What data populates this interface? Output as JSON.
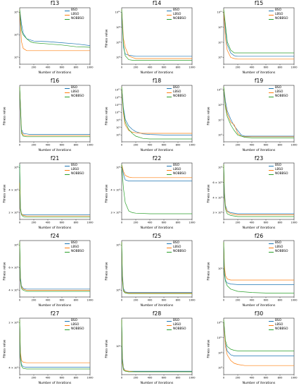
{
  "figure": {
    "xlabel": "Number of iterations",
    "ylabel": "Fitness value",
    "legend": [
      "BSO",
      "LBSO",
      "NOBBSO"
    ],
    "colors": {
      "BSO": "#1f77b4",
      "LBSO": "#ff7f0e",
      "NOBBSO": "#2ca02c"
    },
    "xticks": [
      "0",
      "200",
      "400",
      "600",
      "800",
      "1000"
    ]
  },
  "chart_data": [
    {
      "type": "line",
      "title": "f13",
      "xlabel": "Number of iterations",
      "ylabel": "",
      "y_scale": "log",
      "show_ylabel": false,
      "yticks": [
        "10¹",
        "10³",
        "10⁵"
      ],
      "xlim": [
        0,
        1000
      ],
      "x": [
        0,
        25,
        50,
        100,
        150,
        200,
        400,
        600,
        800,
        1000
      ],
      "series": [
        {
          "name": "BSO",
          "values": [
            0.97,
            0.72,
            0.55,
            0.45,
            0.43,
            0.41,
            0.4,
            0.38,
            0.36,
            0.33
          ]
        },
        {
          "name": "LBSO",
          "values": [
            0.97,
            0.4,
            0.28,
            0.24,
            0.24,
            0.24,
            0.24,
            0.24,
            0.24,
            0.24
          ]
        },
        {
          "name": "NOBBSO",
          "values": [
            0.97,
            0.6,
            0.52,
            0.45,
            0.4,
            0.38,
            0.36,
            0.34,
            0.31,
            0.3
          ]
        }
      ]
    },
    {
      "type": "line",
      "title": "f14",
      "xlabel": "Number of iterations",
      "ylabel": "Fitness value",
      "y_scale": "log",
      "show_ylabel": true,
      "yticks": [
        "10⁴",
        "10⁶",
        "10⁸",
        "10¹⁰"
      ],
      "xlim": [
        0,
        1000
      ],
      "x": [
        0,
        25,
        50,
        100,
        150,
        200,
        400,
        600,
        800,
        1000
      ],
      "series": [
        {
          "name": "BSO",
          "values": [
            0.97,
            0.3,
            0.18,
            0.16,
            0.15,
            0.14,
            0.14,
            0.14,
            0.14,
            0.14
          ]
        },
        {
          "name": "LBSO",
          "values": [
            0.97,
            0.45,
            0.3,
            0.15,
            0.12,
            0.1,
            0.1,
            0.1,
            0.1,
            0.1
          ]
        },
        {
          "name": "NOBBSO",
          "values": [
            0.97,
            0.35,
            0.15,
            0.08,
            0.07,
            0.07,
            0.07,
            0.07,
            0.07,
            0.07
          ]
        }
      ]
    },
    {
      "type": "line",
      "title": "f15",
      "xlabel": "Number of iterations",
      "ylabel": "",
      "y_scale": "log",
      "show_ylabel": false,
      "yticks": [
        "10⁵",
        "10⁷",
        "10⁹",
        "10¹¹"
      ],
      "xlim": [
        0,
        1000
      ],
      "x": [
        0,
        25,
        50,
        100,
        150,
        200,
        400,
        600,
        800,
        1000
      ],
      "series": [
        {
          "name": "BSO",
          "values": [
            0.97,
            0.6,
            0.35,
            0.2,
            0.15,
            0.14,
            0.14,
            0.14,
            0.14,
            0.14
          ]
        },
        {
          "name": "LBSO",
          "values": [
            0.97,
            0.45,
            0.25,
            0.12,
            0.1,
            0.09,
            0.09,
            0.09,
            0.09,
            0.09
          ]
        },
        {
          "name": "NOBBSO",
          "values": [
            0.97,
            0.7,
            0.4,
            0.25,
            0.2,
            0.2,
            0.2,
            0.2,
            0.2,
            0.2
          ]
        }
      ]
    },
    {
      "type": "line",
      "title": "f16",
      "xlabel": "Number of iterations",
      "ylabel": "Fitness value",
      "y_scale": "log",
      "show_ylabel": true,
      "yticks": [],
      "xlim": [
        0,
        1000
      ],
      "x": [
        0,
        25,
        50,
        100,
        150,
        200,
        400,
        600,
        800,
        1000
      ],
      "series": [
        {
          "name": "BSO",
          "values": [
            0.97,
            0.22,
            0.15,
            0.14,
            0.13,
            0.13,
            0.13,
            0.13,
            0.13,
            0.13
          ]
        },
        {
          "name": "LBSO",
          "values": [
            0.97,
            0.18,
            0.12,
            0.11,
            0.11,
            0.11,
            0.11,
            0.11,
            0.11,
            0.11
          ]
        },
        {
          "name": "NOBBSO",
          "values": [
            0.97,
            0.15,
            0.1,
            0.09,
            0.09,
            0.09,
            0.09,
            0.09,
            0.09,
            0.09
          ]
        }
      ]
    },
    {
      "type": "line",
      "title": "f18",
      "xlabel": "Number of iterations",
      "ylabel": "Fitness value",
      "y_scale": "log",
      "show_ylabel": true,
      "yticks": [
        "10⁵",
        "10⁷",
        "10⁹",
        "10¹¹",
        "10¹³",
        "10¹⁵",
        "10¹⁷"
      ],
      "xlim": [
        0,
        1000
      ],
      "x": [
        0,
        25,
        50,
        100,
        150,
        200,
        300,
        400,
        600,
        800,
        1000
      ],
      "series": [
        {
          "name": "BSO",
          "values": [
            0.97,
            0.6,
            0.4,
            0.28,
            0.22,
            0.18,
            0.14,
            0.13,
            0.12,
            0.12,
            0.12
          ]
        },
        {
          "name": "LBSO",
          "values": [
            0.97,
            0.5,
            0.3,
            0.2,
            0.17,
            0.16,
            0.15,
            0.15,
            0.15,
            0.15,
            0.15
          ]
        },
        {
          "name": "NOBBSO",
          "values": [
            0.97,
            0.55,
            0.35,
            0.22,
            0.15,
            0.1,
            0.06,
            0.05,
            0.05,
            0.05,
            0.05
          ]
        }
      ]
    },
    {
      "type": "line",
      "title": "f19",
      "xlabel": "Number of iterations",
      "ylabel": "Fitness value",
      "y_scale": "log",
      "show_ylabel": true,
      "yticks": [
        "10⁵",
        "10⁷",
        "10⁹",
        "10¹¹"
      ],
      "xlim": [
        0,
        1000
      ],
      "x": [
        0,
        25,
        50,
        100,
        150,
        200,
        250,
        300,
        400,
        600,
        800,
        1000
      ],
      "series": [
        {
          "name": "BSO",
          "values": [
            0.97,
            0.72,
            0.55,
            0.4,
            0.28,
            0.2,
            0.12,
            0.1,
            0.1,
            0.1,
            0.1,
            0.1
          ]
        },
        {
          "name": "LBSO",
          "values": [
            0.97,
            0.65,
            0.5,
            0.35,
            0.3,
            0.15,
            0.1,
            0.09,
            0.09,
            0.09,
            0.09,
            0.09
          ]
        },
        {
          "name": "NOBBSO",
          "values": [
            0.97,
            0.6,
            0.45,
            0.3,
            0.2,
            0.12,
            0.1,
            0.08,
            0.07,
            0.07,
            0.07,
            0.07
          ]
        }
      ]
    },
    {
      "type": "line",
      "title": "f21",
      "xlabel": "Number of iterations",
      "ylabel": "Fitness value",
      "y_scale": "log",
      "show_ylabel": true,
      "yticks": [
        "2 × 10³",
        "4 × 10³",
        "10⁴"
      ],
      "xlim": [
        0,
        1000
      ],
      "x": [
        0,
        10,
        25,
        50,
        100,
        200,
        400,
        600,
        800,
        1000
      ],
      "series": [
        {
          "name": "BSO",
          "values": [
            0.97,
            0.2,
            0.1,
            0.08,
            0.08,
            0.08,
            0.08,
            0.08,
            0.08,
            0.08
          ]
        },
        {
          "name": "LBSO",
          "values": [
            0.65,
            0.18,
            0.1,
            0.07,
            0.06,
            0.06,
            0.06,
            0.06,
            0.06,
            0.06
          ]
        },
        {
          "name": "NOBBSO",
          "values": [
            0.97,
            0.2,
            0.08,
            0.05,
            0.04,
            0.04,
            0.04,
            0.04,
            0.04,
            0.04
          ]
        }
      ]
    },
    {
      "type": "line",
      "title": "f22",
      "xlabel": "Number of iterations",
      "ylabel": "Fitness value",
      "y_scale": "log",
      "show_ylabel": true,
      "yticks": [
        "3 × 10³",
        "4 × 10³",
        "10⁴"
      ],
      "xlim": [
        0,
        1000
      ],
      "x": [
        0,
        25,
        50,
        100,
        150,
        200,
        400,
        600,
        800,
        1000
      ],
      "series": [
        {
          "name": "BSO",
          "values": [
            0.97,
            0.8,
            0.7,
            0.68,
            0.68,
            0.68,
            0.68,
            0.68,
            0.68,
            0.68
          ]
        },
        {
          "name": "LBSO",
          "values": [
            0.97,
            0.85,
            0.78,
            0.75,
            0.74,
            0.74,
            0.74,
            0.74,
            0.74,
            0.74
          ]
        },
        {
          "name": "NOBBSO",
          "values": [
            0.97,
            0.55,
            0.3,
            0.15,
            0.12,
            0.11,
            0.1,
            0.1,
            0.1,
            0.1
          ]
        }
      ]
    },
    {
      "type": "line",
      "title": "f23",
      "xlabel": "Number of iterations",
      "ylabel": "Fitness value",
      "y_scale": "log",
      "show_ylabel": true,
      "yticks": [
        "3 × 10³",
        "4 × 10³",
        "6 × 10³",
        "10⁴"
      ],
      "xlim": [
        0,
        1000
      ],
      "x": [
        0,
        10,
        25,
        50,
        100,
        200,
        400,
        600,
        800,
        1000
      ],
      "series": [
        {
          "name": "BSO",
          "values": [
            0.97,
            0.5,
            0.25,
            0.15,
            0.12,
            0.1,
            0.1,
            0.1,
            0.1,
            0.1
          ]
        },
        {
          "name": "LBSO",
          "values": [
            0.97,
            0.45,
            0.22,
            0.14,
            0.1,
            0.08,
            0.08,
            0.08,
            0.08,
            0.08
          ]
        },
        {
          "name": "NOBBSO",
          "values": [
            0.97,
            0.4,
            0.18,
            0.1,
            0.07,
            0.05,
            0.05,
            0.05,
            0.05,
            0.05
          ]
        }
      ]
    },
    {
      "type": "line",
      "title": "f24",
      "xlabel": "Number of iterations",
      "ylabel": "Fitness value",
      "y_scale": "log",
      "show_ylabel": true,
      "yticks": [
        "4 × 10³",
        "6 × 10³",
        "10⁴"
      ],
      "xlim": [
        0,
        1000
      ],
      "x": [
        0,
        10,
        25,
        50,
        100,
        200,
        400,
        600,
        800,
        1000
      ],
      "series": [
        {
          "name": "BSO",
          "values": [
            0.97,
            0.35,
            0.2,
            0.15,
            0.14,
            0.14,
            0.14,
            0.14,
            0.14,
            0.14
          ]
        },
        {
          "name": "LBSO",
          "values": [
            0.97,
            0.3,
            0.18,
            0.14,
            0.12,
            0.12,
            0.12,
            0.12,
            0.12,
            0.12
          ]
        },
        {
          "name": "NOBBSO",
          "values": [
            0.97,
            0.3,
            0.15,
            0.12,
            0.1,
            0.1,
            0.1,
            0.1,
            0.1,
            0.1
          ]
        }
      ]
    },
    {
      "type": "line",
      "title": "f25",
      "xlabel": "Number of iterations",
      "ylabel": "Fitness value",
      "y_scale": "log",
      "show_ylabel": true,
      "yticks": [
        "10⁴",
        "10⁵"
      ],
      "xlim": [
        0,
        1000
      ],
      "x": [
        0,
        10,
        25,
        50,
        100,
        200,
        400,
        600,
        800,
        1000
      ],
      "series": [
        {
          "name": "BSO",
          "values": [
            0.97,
            0.4,
            0.15,
            0.09,
            0.08,
            0.08,
            0.08,
            0.08,
            0.08,
            0.08
          ]
        },
        {
          "name": "LBSO",
          "values": [
            0.97,
            0.35,
            0.12,
            0.08,
            0.07,
            0.07,
            0.07,
            0.07,
            0.07,
            0.07
          ]
        },
        {
          "name": "NOBBSO",
          "values": [
            0.97,
            0.3,
            0.1,
            0.07,
            0.06,
            0.06,
            0.06,
            0.06,
            0.06,
            0.06
          ]
        }
      ]
    },
    {
      "type": "line",
      "title": "f26",
      "xlabel": "Number of iterations",
      "ylabel": "Fitness value",
      "y_scale": "log",
      "show_ylabel": true,
      "yticks": [
        "10⁴"
      ],
      "xlim": [
        0,
        1000
      ],
      "x": [
        0,
        10,
        25,
        50,
        100,
        200,
        400,
        600,
        800,
        1000
      ],
      "series": [
        {
          "name": "BSO",
          "values": [
            0.97,
            0.45,
            0.3,
            0.25,
            0.23,
            0.22,
            0.22,
            0.22,
            0.22,
            0.22
          ]
        },
        {
          "name": "LBSO",
          "values": [
            0.97,
            0.55,
            0.38,
            0.32,
            0.3,
            0.3,
            0.3,
            0.3,
            0.3,
            0.3
          ]
        },
        {
          "name": "NOBBSO",
          "values": [
            0.97,
            0.4,
            0.28,
            0.2,
            0.14,
            0.1,
            0.08,
            0.07,
            0.07,
            0.07
          ]
        }
      ]
    },
    {
      "type": "line",
      "title": "f27",
      "xlabel": "Number of iterations",
      "ylabel": "Fitness value",
      "y_scale": "log",
      "show_ylabel": true,
      "yticks": [
        "4 × 10³",
        "2 × 10⁴"
      ],
      "xlim": [
        0,
        1000
      ],
      "x": [
        0,
        10,
        25,
        50,
        100,
        200,
        400,
        600,
        800,
        1000
      ],
      "series": [
        {
          "name": "BSO",
          "values": [
            0.97,
            0.35,
            0.18,
            0.14,
            0.13,
            0.13,
            0.13,
            0.13,
            0.13,
            0.13
          ]
        },
        {
          "name": "LBSO",
          "values": [
            0.97,
            0.4,
            0.25,
            0.22,
            0.21,
            0.21,
            0.21,
            0.21,
            0.21,
            0.21
          ]
        },
        {
          "name": "NOBBSO",
          "values": [
            0.97,
            0.3,
            0.15,
            0.11,
            0.1,
            0.1,
            0.1,
            0.1,
            0.1,
            0.1
          ]
        }
      ]
    },
    {
      "type": "line",
      "title": "f28",
      "xlabel": "Number of iterations",
      "ylabel": "Fitness value",
      "y_scale": "log",
      "show_ylabel": true,
      "yticks": [
        "10⁴"
      ],
      "xlim": [
        0,
        1000
      ],
      "x": [
        0,
        10,
        25,
        50,
        100,
        200,
        400,
        600,
        800,
        1000
      ],
      "series": [
        {
          "name": "BSO",
          "values": [
            0.97,
            0.3,
            0.12,
            0.07,
            0.06,
            0.06,
            0.06,
            0.06,
            0.06,
            0.06
          ]
        },
        {
          "name": "LBSO",
          "values": [
            0.97,
            0.25,
            0.1,
            0.07,
            0.06,
            0.05,
            0.05,
            0.05,
            0.05,
            0.05
          ]
        },
        {
          "name": "NOBBSO",
          "values": [
            0.97,
            0.2,
            0.08,
            0.06,
            0.05,
            0.05,
            0.05,
            0.05,
            0.05,
            0.05
          ]
        }
      ]
    },
    {
      "type": "line",
      "title": "f30",
      "xlabel": "Number of iterations",
      "ylabel": "Fitness value",
      "y_scale": "log",
      "show_ylabel": true,
      "yticks": [
        "10⁶",
        "10⁸",
        "10¹⁰",
        "10¹²"
      ],
      "xlim": [
        0,
        1000
      ],
      "x": [
        0,
        25,
        50,
        100,
        150,
        200,
        300,
        400,
        600,
        800,
        1000
      ],
      "series": [
        {
          "name": "BSO",
          "values": [
            0.97,
            0.55,
            0.42,
            0.35,
            0.33,
            0.33,
            0.33,
            0.33,
            0.33,
            0.33,
            0.33
          ]
        },
        {
          "name": "LBSO",
          "values": [
            0.97,
            0.5,
            0.35,
            0.25,
            0.2,
            0.18,
            0.16,
            0.16,
            0.16,
            0.16,
            0.16
          ]
        },
        {
          "name": "NOBBSO",
          "values": [
            0.97,
            0.6,
            0.5,
            0.45,
            0.43,
            0.42,
            0.42,
            0.42,
            0.42,
            0.42,
            0.42
          ]
        }
      ]
    }
  ]
}
